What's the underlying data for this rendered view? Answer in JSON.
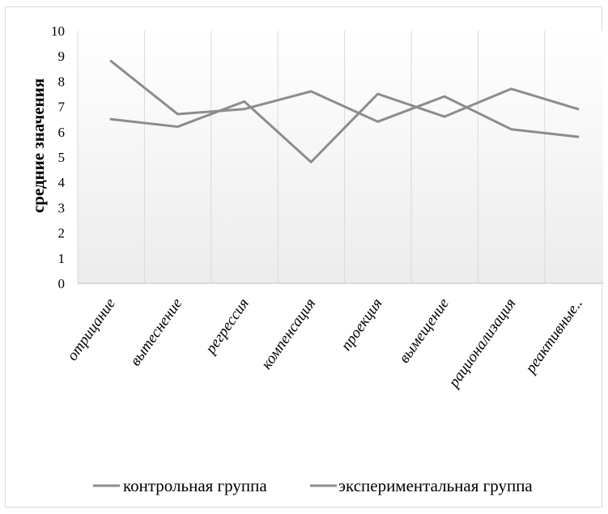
{
  "chart_data": {
    "type": "line",
    "title": "",
    "xlabel": "",
    "ylabel": "средние значения",
    "ylim": [
      0,
      10
    ],
    "yticks": [
      0,
      1,
      2,
      3,
      4,
      5,
      6,
      7,
      8,
      9,
      10
    ],
    "categories": [
      "отрицание",
      "вытеснение",
      "регрессия",
      "компенсация",
      "проекция",
      "вымещение",
      "рационализация",
      "реактивные.."
    ],
    "series": [
      {
        "name": "контрольная группа",
        "color": "#8c8c8c",
        "values": [
          8.8,
          6.7,
          6.9,
          7.6,
          6.4,
          7.4,
          6.1,
          5.8
        ]
      },
      {
        "name": "экспериментальная группа",
        "color": "#8c8c8c",
        "values": [
          6.5,
          6.2,
          7.2,
          4.8,
          7.5,
          6.6,
          7.7,
          6.9
        ]
      }
    ],
    "grid": "vertical",
    "legend": "bottom"
  }
}
